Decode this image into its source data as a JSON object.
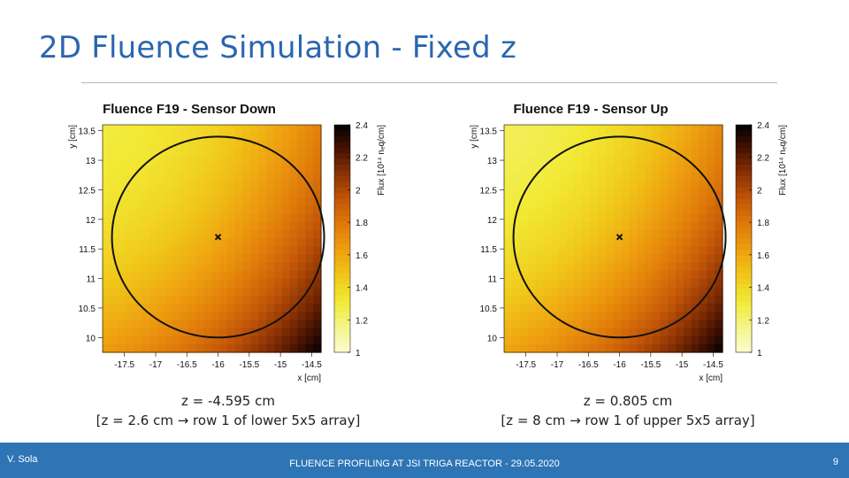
{
  "slide": {
    "title": "2D Fluence Simulation - Fixed z",
    "footer_author": "V. Sola",
    "footer_center": "FLUENCE PROFILING AT JSI TRIGA REACTOR - 29.05.2020",
    "page_number": "9"
  },
  "captions": [
    {
      "line1": "z = -4.595 cm",
      "line2": "[z = 2.6 cm → row 1 of lower 5x5 array]"
    },
    {
      "line1": "z = 0.805 cm",
      "line2": "[z = 8 cm → row 1 of upper 5x5 array]"
    }
  ],
  "chart_data": [
    {
      "type": "heatmap",
      "title": "Fluence F19 - Sensor Down",
      "xlabel": "x [cm]",
      "ylabel": "y [cm]",
      "zlabel": "Flux [10¹⁴ nₑq/cm]",
      "xlim": [
        -17.85,
        -14.35
      ],
      "ylim": [
        9.75,
        13.6
      ],
      "zlim": [
        1.0,
        2.4
      ],
      "x_ticks": [
        -17.5,
        -17,
        -16.5,
        -16,
        -15.5,
        -15,
        -14.5
      ],
      "x_tick_labels": [
        "-17.5",
        "-17",
        "-16.5",
        "-16",
        "-15.5",
        "-15",
        "-14.5"
      ],
      "y_ticks": [
        10,
        10.5,
        11,
        11.5,
        12,
        12.5,
        13,
        13.5
      ],
      "y_tick_labels": [
        "10",
        "10.5",
        "11",
        "11.5",
        "12",
        "12.5",
        "13",
        "13.5"
      ],
      "z_ticks": [
        1,
        1.2,
        1.4,
        1.6,
        1.8,
        2,
        2.2,
        2.4
      ],
      "z_tick_labels": [
        "1",
        "1.2",
        "1.4",
        "1.6",
        "1.8",
        "2",
        "2.2",
        "2.4"
      ],
      "circle": {
        "center": [
          -16.0,
          11.7
        ],
        "radius": 1.7
      },
      "marker": [
        -16.0,
        11.7
      ],
      "gradient": {
        "max_value": 1.3,
        "min_value": 2.4,
        "max_at": [
          -17.85,
          13.6
        ],
        "min_at": [
          -14.35,
          9.75
        ],
        "shape": "diagonal"
      },
      "grid": false
    },
    {
      "type": "heatmap",
      "title": "Fluence F19 - Sensor Up",
      "xlabel": "x [cm]",
      "ylabel": "y [cm]",
      "zlabel": "Flux [10¹⁴ nₑq/cm]",
      "xlim": [
        -17.85,
        -14.35
      ],
      "ylim": [
        9.75,
        13.6
      ],
      "zlim": [
        1.0,
        2.4
      ],
      "x_ticks": [
        -17.5,
        -17,
        -16.5,
        -16,
        -15.5,
        -15,
        -14.5
      ],
      "x_tick_labels": [
        "-17.5",
        "-17",
        "-16.5",
        "-16",
        "-15.5",
        "-15",
        "-14.5"
      ],
      "y_ticks": [
        10,
        10.5,
        11,
        11.5,
        12,
        12.5,
        13,
        13.5
      ],
      "y_tick_labels": [
        "10",
        "10.5",
        "11",
        "11.5",
        "12",
        "12.5",
        "13",
        "13.5"
      ],
      "z_ticks": [
        1,
        1.2,
        1.4,
        1.6,
        1.8,
        2,
        2.2,
        2.4
      ],
      "z_tick_labels": [
        "1",
        "1.2",
        "1.4",
        "1.6",
        "1.8",
        "2",
        "2.2",
        "2.4"
      ],
      "circle": {
        "center": [
          -16.0,
          11.7
        ],
        "radius": 1.7
      },
      "marker": [
        -16.0,
        11.7
      ],
      "gradient": {
        "max_value": 1.25,
        "min_value": 2.4,
        "max_at": [
          -17.85,
          13.6
        ],
        "min_at": [
          -14.35,
          9.75
        ],
        "shape": "diagonal"
      },
      "grid": false
    }
  ],
  "colors": {
    "title": "#2a66b0",
    "footer_bg": "#2e75b6",
    "palette": [
      "#fcfcd0",
      "#f4f48a",
      "#f2ea36",
      "#f0c81a",
      "#eea010",
      "#e07c0a",
      "#c45808",
      "#8e3404",
      "#4a1402",
      "#000000"
    ]
  }
}
